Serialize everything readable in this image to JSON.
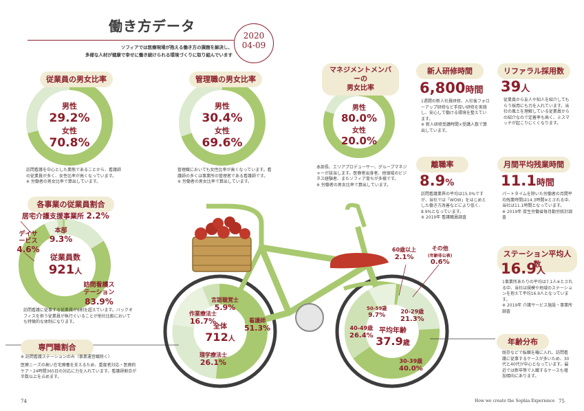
{
  "title": "働き方データ",
  "year_badge": {
    "year": "2020",
    "period": "04-09"
  },
  "subtitle_line1": "ソフィアでは医療現場が抱える働き方の課題を解決し、",
  "subtitle_line2": "多様な人材が健康で幸せに働き続けられる環境づくりに取り組んでいます",
  "gender_staff": {
    "heading": "従業員の男女比率",
    "male_label": "男性",
    "male_value": "29.2%",
    "female_label": "女性",
    "female_value": "70.8%",
    "note": "訪問看護を中心とした業態であることから、看護師の従業員が多く、女性比率が高くなっています。",
    "note2": "※ 労働者の男女比率で算出しています。"
  },
  "gender_manager": {
    "heading": "管理職の男女比率",
    "male_label": "男性",
    "male_value": "30.4%",
    "female_label": "女性",
    "female_value": "69.6%",
    "note": "管理職においても女性比率が高くなっています。看護師の多くは事業所の管理者である看護師です。",
    "note2": "※ 労働者の男女比率で算出しています。"
  },
  "gender_mgmt": {
    "heading_line1": "マネジメントメンバーの",
    "heading_line2": "男女比率",
    "male_label": "男性",
    "male_value": "80.0%",
    "female_label": "女性",
    "female_value": "20.0%",
    "note": "本部長、エリアプロデューサー、グループマネジャーが該当します。医療者出身者、他領域のビジネス経験者、またソフィア育ちが多様です。",
    "note2": "※ 労働者の男女比率で算出しています。"
  },
  "training": {
    "heading": "新人研修時間",
    "value": "6,800",
    "unit": "時間",
    "note": "1週間の新人社員研修、入社後フォローアップ研修など手厚い研修を実施し、安心して働ける環境を整えています。",
    "note2": "※ 新人研修受講時間×受講人数で算出しています。"
  },
  "referral": {
    "heading": "リファラル採用数",
    "value": "39",
    "unit": "人",
    "note": "従業員から友人や知人を紹介してもらう採用にも力を入れています。当社の風土を理解している従業員からの紹介なので定着率も高く、ミスマッチが起こりにくくなります。"
  },
  "turnover": {
    "heading": "離職率",
    "value": "8.9",
    "unit": "%",
    "note": "訪問看護業界の平均は15.0%ですが、当社では「WOW」をはじめとした働き方改善などにより低く、8.9%となっています。",
    "note2": "※ 2019年 看護職員調査"
  },
  "overtime": {
    "heading": "月間平均残業時間",
    "value": "11.1",
    "unit": "時間",
    "note": "パートタイムを除いた労働者の月間平均残業時間は14.3時間※とされる中、当社は11.1時間となっています。",
    "note2": "※ 2019年 厚生労働省毎月勤労統計調査"
  },
  "station": {
    "heading": "ステーション平均人数",
    "value": "16.9",
    "unit": "人",
    "note": "1事業所あたりの平均は7.1人※とされる中、当社は規模や地域のステーションを抱えて平均16.9人となっています。",
    "note2": "※ 2019年 介護サービス施設・事業所調査"
  },
  "employees": {
    "heading": "各事業の従業員割合",
    "center_label": "従業員数",
    "center_value": "921",
    "center_unit": "人",
    "segments": [
      {
        "label": "居宅介護支援事業所",
        "value": "2.2%"
      },
      {
        "label": "本部",
        "value": "9.3%"
      },
      {
        "label": "デイサービス",
        "value": "4.6%"
      },
      {
        "label": "訪問看護ステーション",
        "value": "83.9%"
      }
    ],
    "note": "訪問看護に従事する従業員が8割を超えています。バックオフィスを担う従業員が執行ぐいることが他社比較においても特徴的な体制になります。"
  },
  "specialty": {
    "heading": "専門職割合",
    "sub": "※ 訪問看護ステーションのみ（事業運営職除く）",
    "note": "医療ニーズの高い在宅療養を支えるため、重度者対応・医療的ケア・24時間365日の対応に力を入れています。看護師割合が半数以上を占めます。",
    "center_label": "全体",
    "center_value": "712",
    "center_unit": "人",
    "segments": [
      {
        "label": "言語聴覚士",
        "value": "5.9%"
      },
      {
        "label": "作業療法士",
        "value": "16.7%"
      },
      {
        "label": "看護師",
        "value": "51.3%"
      },
      {
        "label": "理学療法士",
        "value": "26.1%"
      }
    ]
  },
  "age": {
    "heading": "年齢分布",
    "center_label": "平均年齢",
    "center_value": "37.9",
    "center_unit": "歳",
    "segments": [
      {
        "label": "60歳以上",
        "value": "2.1%"
      },
      {
        "label": "その他",
        "sublabel": "(年齢非公表)",
        "value": "0.6%"
      },
      {
        "label": "50-59歳",
        "value": "9.7%"
      },
      {
        "label": "20-29歳",
        "value": "21.3%"
      },
      {
        "label": "40-49歳",
        "value": "26.4%"
      },
      {
        "label": "30-39歳",
        "value": "40.0%"
      }
    ],
    "note": "既存などで転職を機に入れ、訪問看護に従事するケースが多いため、30代と40代が中心となっています。最近では新卒等で入職するケースも増加傾向にあります。"
  },
  "footer": {
    "page_left": "74",
    "page_right": "75",
    "caption": "How we create the Sophia Experience"
  },
  "colors": {
    "accent": "#8b1e2a",
    "green": "#a8c96f",
    "light_green": "#dcead0",
    "pill": "#f1ebd4"
  }
}
